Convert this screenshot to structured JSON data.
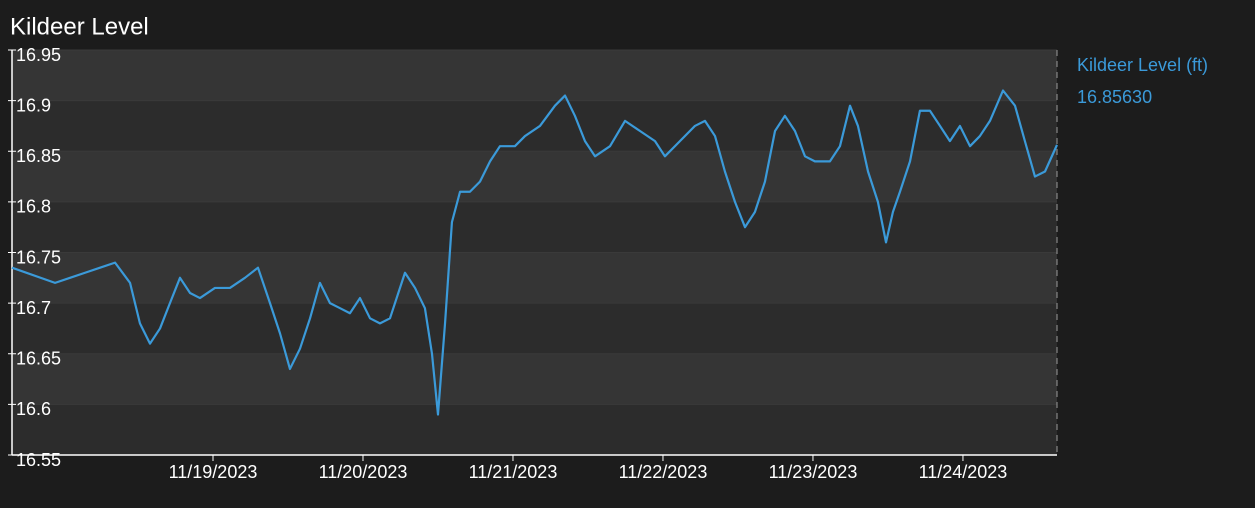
{
  "chart_data": {
    "type": "line",
    "title": "Kildeer Level",
    "x": [
      17.66,
      17.947,
      18.047,
      18.147,
      18.247,
      18.347,
      18.447,
      18.513,
      18.58,
      18.647,
      18.713,
      18.78,
      18.847,
      18.913,
      19.013,
      19.113,
      19.213,
      19.3,
      19.38,
      19.447,
      19.513,
      19.58,
      19.647,
      19.713,
      19.78,
      19.847,
      19.913,
      19.98,
      20.047,
      20.113,
      20.18,
      20.28,
      20.347,
      20.413,
      20.46,
      20.5,
      20.547,
      20.593,
      20.647,
      20.713,
      20.78,
      20.847,
      20.913,
      21.013,
      21.08,
      21.18,
      21.28,
      21.347,
      21.413,
      21.48,
      21.547,
      21.647,
      21.747,
      21.847,
      21.947,
      22.013,
      22.113,
      22.213,
      22.28,
      22.347,
      22.413,
      22.48,
      22.547,
      22.613,
      22.68,
      22.747,
      22.813,
      22.88,
      22.947,
      23.013,
      23.113,
      23.18,
      23.247,
      23.3,
      23.367,
      23.433,
      23.487,
      23.533,
      23.58,
      23.647,
      23.713,
      23.78,
      23.847,
      23.913,
      23.98,
      24.047,
      24.113,
      24.18,
      24.267,
      24.347,
      24.413,
      24.48,
      24.547,
      24.627
    ],
    "series": [
      {
        "name": "Kildeer Level (ft)",
        "color": "#3b9ad9",
        "readout": "16.85630",
        "values": [
          16.735,
          16.72,
          16.725,
          16.73,
          16.735,
          16.74,
          16.72,
          16.68,
          16.66,
          16.675,
          16.7,
          16.725,
          16.71,
          16.705,
          16.715,
          16.715,
          16.725,
          16.735,
          16.7,
          16.67,
          16.635,
          16.655,
          16.685,
          16.72,
          16.7,
          16.695,
          16.69,
          16.705,
          16.685,
          16.68,
          16.685,
          16.73,
          16.715,
          16.695,
          16.65,
          16.59,
          16.68,
          16.78,
          16.81,
          16.81,
          16.82,
          16.84,
          16.855,
          16.855,
          16.865,
          16.875,
          16.895,
          16.905,
          16.885,
          16.86,
          16.845,
          16.855,
          16.88,
          16.87,
          16.86,
          16.845,
          16.86,
          16.875,
          16.88,
          16.865,
          16.83,
          16.8,
          16.775,
          16.79,
          16.82,
          16.87,
          16.885,
          16.87,
          16.845,
          16.84,
          16.84,
          16.855,
          16.895,
          16.875,
          16.83,
          16.8,
          16.76,
          16.79,
          16.81,
          16.84,
          16.89,
          16.89,
          16.875,
          16.86,
          16.875,
          16.855,
          16.865,
          16.88,
          16.91,
          16.895,
          16.86,
          16.825,
          16.83,
          16.8563
        ]
      }
    ],
    "xlim": [
      17.66,
      24.627
    ],
    "xticks": [
      {
        "value": 19,
        "label": "11/19/2023"
      },
      {
        "value": 20,
        "label": "11/20/2023"
      },
      {
        "value": 21,
        "label": "11/21/2023"
      },
      {
        "value": 22,
        "label": "11/22/2023"
      },
      {
        "value": 23,
        "label": "11/23/2023"
      },
      {
        "value": 24,
        "label": "11/24/2023"
      }
    ],
    "ylim": [
      16.55,
      16.95
    ],
    "yticks": [
      16.55,
      16.6,
      16.65,
      16.7,
      16.75,
      16.8,
      16.85,
      16.9,
      16.95
    ],
    "grid": true
  }
}
